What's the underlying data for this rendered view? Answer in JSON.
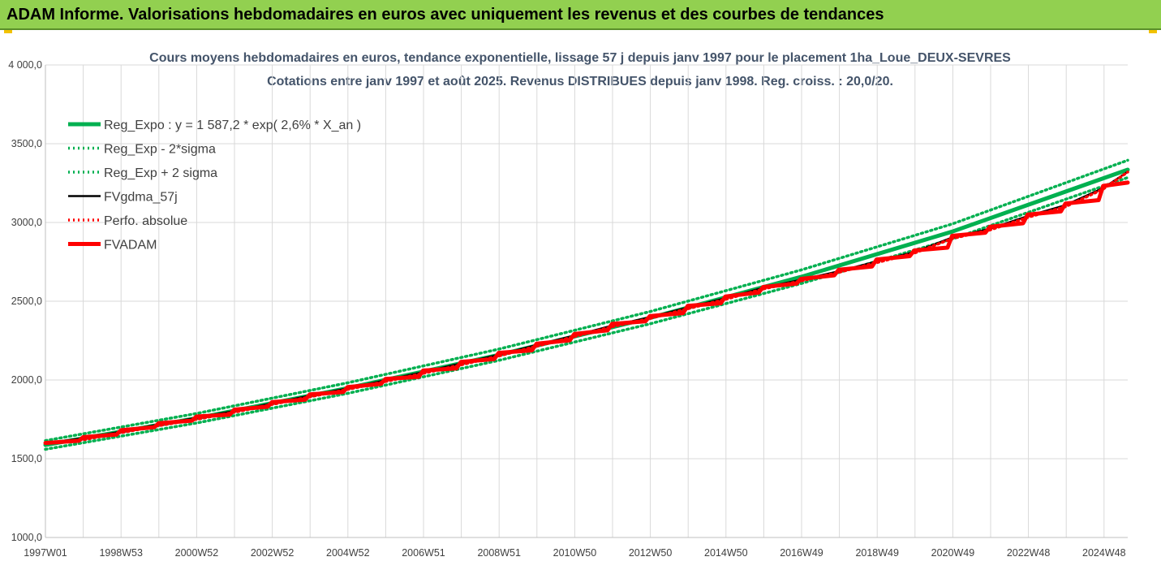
{
  "header": {
    "title": "ADAM Informe. Valorisations hebdomadaires en euros avec uniquement les revenus et des courbes de tendances"
  },
  "colors": {
    "header_bg": "#92d050",
    "reg_expo": "#00b050",
    "reg_bands": "#00b050",
    "fvgdma": "#000000",
    "perfo": "#ff0000",
    "fvadam": "#ff0000",
    "grid": "#d9d9d9",
    "title": "#44546a"
  },
  "chart_data": {
    "type": "line",
    "title": "Cours moyens hebdomadaires en euros, tendance exponentielle, lissage 57 j depuis janv 1997 pour le placement 1ha_Loue_DEUX-SEVRES",
    "subtitle": "Cotations entre janv 1997 et août 2025. Revenus DISTRIBUES depuis janv 1998. Reg. croiss. : 20,0/20.",
    "xlabel": "",
    "ylabel": "",
    "ylim": [
      1000,
      4000
    ],
    "yticks": [
      "1000,0",
      "1500,0",
      "2000,0",
      "2500,0",
      "3000,0",
      "3500,0",
      "4 000,0"
    ],
    "xticks": [
      "1997W01",
      "1998W53",
      "2000W52",
      "2002W52",
      "2004W52",
      "2006W51",
      "2008W51",
      "2010W50",
      "2012W50",
      "2014W50",
      "2016W49",
      "2018W49",
      "2020W49",
      "2022W48",
      "2024W48"
    ],
    "grid": true,
    "legend_position": "top-left",
    "x_unit": "year",
    "x_start": 1997.0,
    "x_end": 2025.65,
    "series": [
      {
        "name": "Reg_Expo : y = 1 587,2 * exp( 2,6% *  X_an )",
        "style": "solid-thick",
        "color": "#00b050",
        "x": [
          1997.0,
          2001.0,
          2005.0,
          2009.0,
          2013.0,
          2017.0,
          2021.0,
          2025.65
        ],
        "values": [
          1587,
          1757,
          1948,
          2159,
          2394,
          2654,
          2942,
          3335
        ]
      },
      {
        "name": "Reg_Exp - 2*sigma",
        "style": "dotted",
        "color": "#00b050",
        "x": [
          1997.0,
          2001.0,
          2005.0,
          2009.0,
          2013.0,
          2017.0,
          2021.0,
          2025.65
        ],
        "values": [
          1560,
          1727,
          1915,
          2124,
          2356,
          2612,
          2895,
          3285
        ]
      },
      {
        "name": "Reg_Exp + 2 sigma",
        "style": "dotted",
        "color": "#00b050",
        "x": [
          1997.0,
          2001.0,
          2005.0,
          2009.0,
          2013.0,
          2017.0,
          2021.0,
          2025.65
        ],
        "values": [
          1615,
          1787,
          1982,
          2196,
          2434,
          2698,
          2990,
          3395
        ]
      },
      {
        "name": "FVgdma_57j",
        "style": "solid",
        "color": "#000000",
        "x": [
          1997.0,
          1998.0,
          1999.0,
          2000.0,
          2001.0,
          2002.0,
          2003.0,
          2004.0,
          2005.0,
          2006.0,
          2007.0,
          2008.0,
          2009.0,
          2010.0,
          2011.0,
          2012.0,
          2013.0,
          2014.0,
          2015.0,
          2016.0,
          2017.0,
          2018.0,
          2019.0,
          2020.0,
          2021.0,
          2022.0,
          2023.0,
          2024.0,
          2025.0,
          2025.65
        ],
        "values": [
          1600,
          1630,
          1672,
          1718,
          1760,
          1803,
          1851,
          1900,
          1947,
          1998,
          2050,
          2105,
          2160,
          2222,
          2282,
          2345,
          2398,
          2460,
          2519,
          2585,
          2636,
          2690,
          2752,
          2812,
          2904,
          2960,
          3040,
          3110,
          3218,
          3322
        ]
      },
      {
        "name": "Perfo. absolue",
        "style": "dotted",
        "color": "#ff0000",
        "x": [
          1997.0,
          1998.0,
          1999.0,
          2000.0,
          2001.0,
          2002.0,
          2003.0,
          2004.0,
          2005.0,
          2006.0,
          2007.0,
          2008.0,
          2009.0,
          2010.0,
          2011.0,
          2012.0,
          2013.0,
          2014.0,
          2015.0,
          2016.0,
          2017.0,
          2018.0,
          2019.0,
          2020.0,
          2021.0,
          2022.0,
          2023.0,
          2024.0,
          2025.0,
          2025.65
        ],
        "values": [
          1600,
          1620,
          1665,
          1710,
          1750,
          1795,
          1845,
          1893,
          1940,
          1990,
          2042,
          2096,
          2152,
          2214,
          2275,
          2338,
          2390,
          2452,
          2512,
          2578,
          2629,
          2683,
          2745,
          2805,
          2898,
          2952,
          3032,
          3100,
          3212,
          3320
        ]
      },
      {
        "name": "FVADAM",
        "style": "step-thick",
        "color": "#ff0000",
        "steps_x": [
          1997.0,
          1998.0,
          1999.0,
          2000.0,
          2001.0,
          2002.0,
          2003.0,
          2004.0,
          2005.0,
          2006.0,
          2007.0,
          2008.0,
          2009.0,
          2010.0,
          2011.0,
          2012.0,
          2013.0,
          2014.0,
          2015.0,
          2016.0,
          2017.0,
          2018.0,
          2019.0,
          2020.0,
          2021.0,
          2022.0,
          2023.0,
          2024.0,
          2025.0
        ],
        "steps_start": [
          1600,
          1637,
          1681,
          1726,
          1768,
          1812,
          1860,
          1908,
          1955,
          2006,
          2060,
          2115,
          2172,
          2230,
          2292,
          2356,
          2405,
          2470,
          2530,
          2590,
          2642,
          2700,
          2765,
          2822,
          2915,
          2972,
          3050,
          3120,
          3232
        ],
        "steps_end": [
          1614,
          1653,
          1700,
          1742,
          1780,
          1830,
          1875,
          1923,
          1975,
          2020,
          2073,
          2133,
          2188,
          2252,
          2315,
          2372,
          2425,
          2487,
          2555,
          2612,
          2664,
          2720,
          2786,
          2840,
          2935,
          2995,
          3070,
          3142,
          3253
        ]
      }
    ]
  }
}
